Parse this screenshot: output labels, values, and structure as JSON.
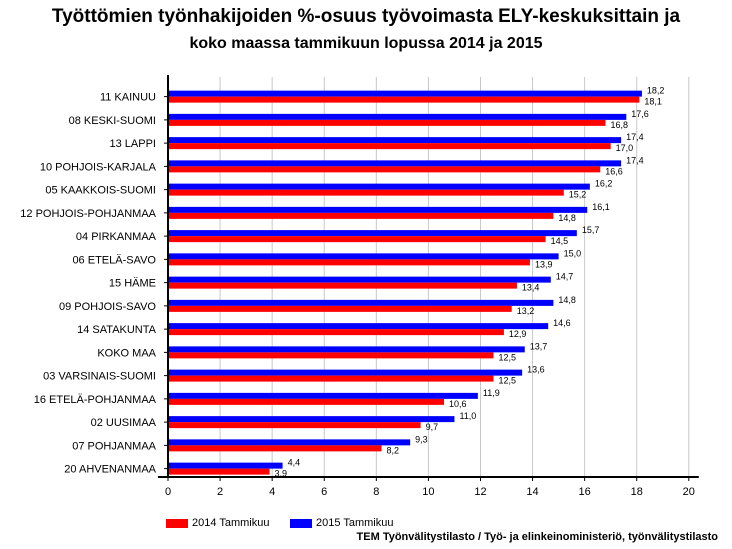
{
  "title": "Työttömien työnhakijoiden %-osuus työvoimasta ELY-keskuksittain ja",
  "subtitle": "koko maassa tammikuun lopussa 2014 ja 2015",
  "source": "TEM Työnvälitystilasto / Työ- ja elinkeinoministeriö, työnvälitystilasto",
  "colors": {
    "s2014": "#ff0000",
    "s2015": "#0000ff"
  },
  "chart_data": {
    "type": "bar",
    "orientation": "horizontal",
    "categories": [
      "11 KAINUU",
      "08 KESKI-SUOMI",
      "13 LAPPI",
      "10 POHJOIS-KARJALA",
      "05 KAAKKOIS-SUOMI",
      "12 POHJOIS-POHJANMAA",
      "04 PIRKANMAA",
      "06 ETELÄ-SAVO",
      "15 HÄME",
      "09 POHJOIS-SAVO",
      "14 SATAKUNTA",
      "KOKO MAA",
      "03 VARSINAIS-SUOMI",
      "16 ETELÄ-POHJANMAA",
      "02 UUSIMAA",
      "07 POHJANMAA",
      "20 AHVENANMAA"
    ],
    "series": [
      {
        "name": "2014 Tammikuu",
        "color": "#ff0000",
        "values": [
          18.1,
          16.8,
          17.0,
          16.6,
          15.2,
          14.8,
          14.5,
          13.9,
          13.4,
          13.2,
          12.9,
          12.5,
          12.5,
          10.6,
          9.7,
          8.2,
          3.9
        ],
        "labels": [
          "18,1",
          "16,8",
          "17,0",
          "16,6",
          "15,2",
          "14,8",
          "14,5",
          "13,9",
          "13,4",
          "13,2",
          "12,9",
          "12,5",
          "12,5",
          "10,6",
          "9,7",
          "8,2",
          "3,9"
        ]
      },
      {
        "name": "2015 Tammikuu",
        "color": "#0000ff",
        "values": [
          18.2,
          17.6,
          17.4,
          17.4,
          16.2,
          16.1,
          15.7,
          15.0,
          14.7,
          14.8,
          14.6,
          13.7,
          13.6,
          11.9,
          11.0,
          9.3,
          4.4
        ],
        "labels": [
          "18,2",
          "17,6",
          "17,4",
          "17,4",
          "16,2",
          "16,1",
          "15,7",
          "15,0",
          "14,7",
          "14,8",
          "14,6",
          "13,7",
          "13,6",
          "11,9",
          "11,0",
          "9,3",
          "4,4"
        ]
      }
    ],
    "xlim": [
      0,
      20
    ],
    "ticks": [
      "0",
      "2",
      "4",
      "6",
      "8",
      "10",
      "12",
      "14",
      "16",
      "18",
      "20"
    ],
    "tick_values": [
      0,
      2,
      4,
      6,
      8,
      10,
      12,
      14,
      16,
      18,
      20
    ],
    "grid": "vertical",
    "legend": "bottom-left"
  }
}
